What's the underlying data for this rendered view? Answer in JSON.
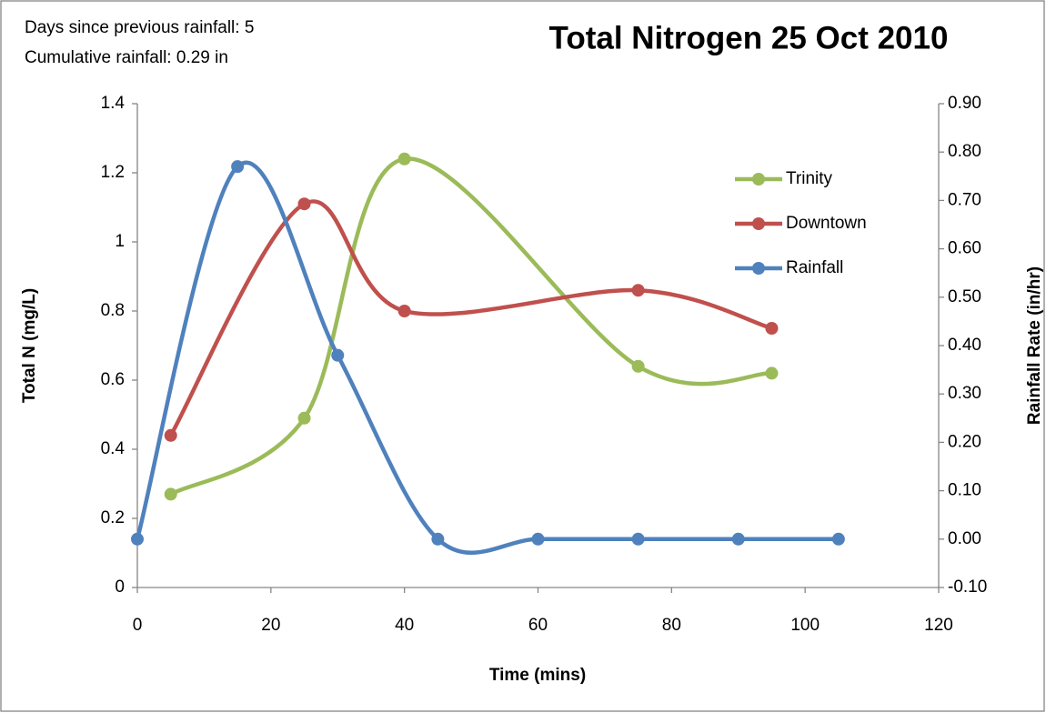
{
  "chart_data": {
    "type": "line",
    "title": "Total Nitrogen 25 Oct 2010",
    "annotations": [
      "Days since previous rainfall: 5",
      "Cumulative rainfall: 0.29 in"
    ],
    "x_label": "Time (mins)",
    "y_label": "Total N (mg/L)",
    "y2_label": "Rainfall Rate (in/hr)",
    "xlim": [
      0,
      120
    ],
    "xticks": [
      0,
      20,
      40,
      60,
      80,
      100,
      120
    ],
    "ylim": [
      0,
      1.4
    ],
    "yticks": [
      0,
      0.2,
      0.4,
      0.6,
      0.8,
      1,
      1.2,
      1.4
    ],
    "y2lim": [
      -0.1,
      0.9
    ],
    "y2ticks": [
      {
        "value": -0.1,
        "label": "-0.10"
      },
      {
        "value": 0,
        "label": "0.00"
      },
      {
        "value": 0.1,
        "label": "0.10"
      },
      {
        "value": 0.2,
        "label": "0.20"
      },
      {
        "value": 0.3,
        "label": "0.30"
      },
      {
        "value": 0.4,
        "label": "0.40"
      },
      {
        "value": 0.5,
        "label": "0.50"
      },
      {
        "value": 0.6,
        "label": "0.60"
      },
      {
        "value": 0.7,
        "label": "0.70"
      },
      {
        "value": 0.8,
        "label": "0.80"
      },
      {
        "value": 0.9,
        "label": "0.90"
      }
    ],
    "smooth": true,
    "series": [
      {
        "name": "Trinity",
        "color": "#9bbb59",
        "x": [
          5,
          25,
          40,
          75,
          95
        ],
        "values": [
          0.27,
          0.49,
          1.24,
          0.64,
          0.62
        ]
      },
      {
        "name": "Downtown",
        "color": "#c0504d",
        "x": [
          5,
          25,
          40,
          75,
          95
        ],
        "values": [
          0.44,
          1.11,
          0.8,
          0.86,
          0.75
        ]
      },
      {
        "name": "Rainfall",
        "color": "#4f81bd",
        "axis": "y2",
        "x": [
          0,
          15,
          30,
          45,
          60,
          75,
          90,
          105
        ],
        "values": [
          0,
          0.77,
          0.38,
          0,
          0,
          0,
          0,
          0
        ]
      }
    ]
  }
}
